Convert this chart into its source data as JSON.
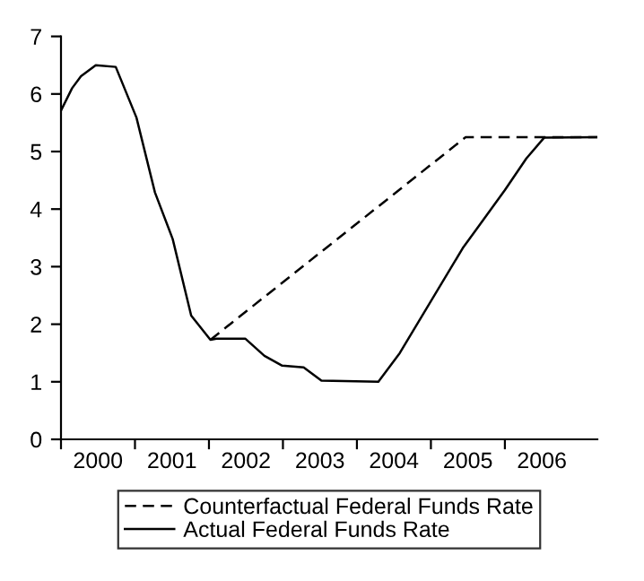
{
  "chart_data": {
    "type": "line",
    "series": [
      {
        "name": "Counterfactual Federal Funds Rate",
        "color": "#000000",
        "line_style": "dashed",
        "x": [
          2002.02,
          2005.47,
          2007.25
        ],
        "values": [
          1.73,
          5.25,
          5.25
        ]
      },
      {
        "name": "Actual Federal Funds Rate",
        "color": "#000000",
        "line_style": "solid",
        "x": [
          2000.0,
          2000.15,
          2000.27,
          2000.47,
          2000.74,
          2001.02,
          2001.27,
          2001.51,
          2001.76,
          2002.02,
          2002.1,
          2002.49,
          2002.75,
          2002.99,
          2003.28,
          2003.52,
          2004.29,
          2004.58,
          2005.43,
          2006.0,
          2006.29,
          2006.53,
          2007.25
        ],
        "values": [
          5.71,
          6.1,
          6.31,
          6.5,
          6.47,
          5.59,
          4.29,
          3.48,
          2.15,
          1.73,
          1.75,
          1.75,
          1.45,
          1.28,
          1.25,
          1.02,
          1.0,
          1.5,
          3.32,
          4.33,
          4.88,
          5.24,
          5.25
        ]
      }
    ],
    "xlim": [
      2000,
      2007.25
    ],
    "xticks": [
      {
        "value": 2000,
        "label": null
      },
      {
        "value": 2001,
        "label": null
      },
      {
        "value": 2002,
        "label": null
      },
      {
        "value": 2003,
        "label": null
      },
      {
        "value": 2004,
        "label": null
      },
      {
        "value": 2005,
        "label": null
      },
      {
        "value": 2006,
        "label": null
      },
      {
        "value": 2000.5,
        "label": "2000"
      },
      {
        "value": 2001.5,
        "label": "2001"
      },
      {
        "value": 2002.5,
        "label": "2002"
      },
      {
        "value": 2003.5,
        "label": "2003"
      },
      {
        "value": 2004.5,
        "label": "2004"
      },
      {
        "value": 2005.5,
        "label": "2005"
      },
      {
        "value": 2006.5,
        "label": "2006"
      }
    ],
    "ylim": [
      0,
      7
    ],
    "yticks": [
      0,
      1,
      2,
      3,
      4,
      5,
      6,
      7
    ],
    "grid": false,
    "legend": "bottom",
    "marker": "none"
  }
}
